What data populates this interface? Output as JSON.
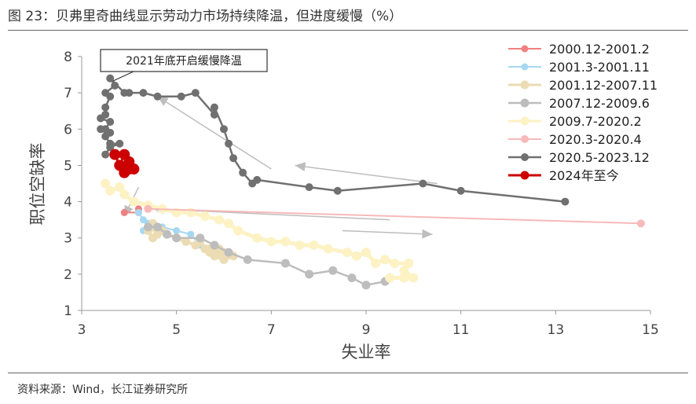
{
  "figure": {
    "title": "图 23：贝弗里奇曲线显示劳动力市场持续降温，但进度缓慢（%）",
    "source": "资料来源：Wind，长江证券研究所"
  },
  "colors": {
    "s1": "#f08080",
    "s2": "#a6d8f2",
    "s3": "#ecdcb4",
    "s4": "#bdbdbd",
    "s5": "#fdf2c4",
    "s6": "#f7b9b9",
    "s7": "#707070",
    "s8": "#cc0000",
    "arrow": "#bdbdbd",
    "axis": "#999999"
  },
  "chart_data": {
    "type": "scatter",
    "title": "",
    "xlabel": "失业率",
    "ylabel": "职位空缺率",
    "xlim": [
      3,
      15
    ],
    "ylim": [
      1,
      8
    ],
    "xticks": [
      3,
      5,
      7,
      9,
      11,
      13,
      15
    ],
    "yticks": [
      1,
      2,
      3,
      4,
      5,
      6,
      7,
      8
    ],
    "legend_position": "top-right",
    "annotation": "2021年底开启缓慢降温",
    "series": [
      {
        "name": "2000.12-2001.2",
        "color_key": "s1",
        "marker_r": 4.5,
        "line_width": 2,
        "points": [
          [
            3.9,
            3.7
          ],
          [
            4.2,
            3.7
          ],
          [
            4.2,
            3.8
          ]
        ]
      },
      {
        "name": "2001.3-2001.11",
        "color_key": "s2",
        "marker_r": 4.5,
        "line_width": 2,
        "points": [
          [
            4.2,
            3.7
          ],
          [
            4.3,
            3.5
          ],
          [
            4.4,
            3.4
          ],
          [
            4.3,
            3.2
          ],
          [
            4.7,
            3.3
          ],
          [
            5.0,
            3.2
          ],
          [
            5.3,
            3.1
          ],
          [
            5.5,
            2.8
          ],
          [
            5.7,
            2.7
          ]
        ]
      },
      {
        "name": "2001.12-2007.11",
        "color_key": "s3",
        "marker_r": 5.5,
        "line_width": 4,
        "points": [
          [
            5.7,
            2.7
          ],
          [
            5.9,
            2.6
          ],
          [
            5.8,
            2.5
          ],
          [
            6.0,
            2.4
          ],
          [
            6.2,
            2.5
          ],
          [
            6.0,
            2.6
          ],
          [
            5.9,
            2.7
          ],
          [
            5.7,
            2.6
          ],
          [
            5.6,
            2.7
          ],
          [
            5.5,
            2.9
          ],
          [
            5.4,
            2.8
          ],
          [
            5.2,
            2.9
          ],
          [
            5.0,
            3.0
          ],
          [
            4.8,
            3.1
          ],
          [
            4.6,
            3.2
          ],
          [
            4.5,
            3.3
          ],
          [
            4.5,
            3.4
          ],
          [
            4.6,
            3.3
          ],
          [
            4.7,
            3.2
          ],
          [
            4.6,
            3.1
          ],
          [
            4.5,
            3.0
          ],
          [
            4.4,
            3.2
          ]
        ]
      },
      {
        "name": "2007.12-2009.6",
        "color_key": "s4",
        "marker_r": 5.5,
        "line_width": 2.5,
        "points": [
          [
            4.4,
            3.3
          ],
          [
            4.6,
            3.3
          ],
          [
            4.8,
            3.1
          ],
          [
            5.0,
            3.0
          ],
          [
            5.5,
            3.0
          ],
          [
            5.8,
            2.8
          ],
          [
            6.1,
            2.6
          ],
          [
            6.5,
            2.4
          ],
          [
            7.3,
            2.3
          ],
          [
            7.8,
            2.0
          ],
          [
            8.3,
            2.1
          ],
          [
            8.7,
            1.9
          ],
          [
            9.0,
            1.7
          ],
          [
            9.4,
            1.8
          ]
        ]
      },
      {
        "name": "2009.7-2020.2",
        "color_key": "s5",
        "marker_r": 6,
        "line_width": 5,
        "points": [
          [
            9.5,
            1.9
          ],
          [
            9.8,
            1.9
          ],
          [
            10.0,
            1.9
          ],
          [
            9.8,
            2.1
          ],
          [
            9.9,
            2.3
          ],
          [
            9.6,
            2.3
          ],
          [
            9.4,
            2.4
          ],
          [
            9.2,
            2.3
          ],
          [
            9.0,
            2.6
          ],
          [
            8.8,
            2.5
          ],
          [
            8.6,
            2.6
          ],
          [
            8.2,
            2.7
          ],
          [
            7.9,
            2.8
          ],
          [
            7.6,
            2.8
          ],
          [
            7.3,
            2.9
          ],
          [
            7.0,
            2.9
          ],
          [
            6.7,
            3.0
          ],
          [
            6.3,
            3.2
          ],
          [
            6.1,
            3.4
          ],
          [
            5.9,
            3.5
          ],
          [
            5.6,
            3.6
          ],
          [
            5.3,
            3.7
          ],
          [
            5.0,
            3.7
          ],
          [
            4.7,
            3.8
          ],
          [
            4.4,
            3.9
          ],
          [
            4.1,
            4.0
          ],
          [
            3.9,
            4.2
          ],
          [
            3.8,
            4.4
          ],
          [
            3.6,
            4.3
          ],
          [
            3.5,
            4.5
          ]
        ]
      },
      {
        "name": "2020.3-2020.4",
        "color_key": "s6",
        "marker_r": 5,
        "line_width": 2,
        "points": [
          [
            4.4,
            3.8
          ],
          [
            14.8,
            3.4
          ]
        ]
      },
      {
        "name": "2020.5-2023.12",
        "color_key": "s7",
        "marker_r": 5,
        "line_width": 2.5,
        "points": [
          [
            13.2,
            4.0
          ],
          [
            11.0,
            4.3
          ],
          [
            10.2,
            4.5
          ],
          [
            8.4,
            4.3
          ],
          [
            7.8,
            4.4
          ],
          [
            6.7,
            4.6
          ],
          [
            6.6,
            4.5
          ],
          [
            6.4,
            4.8
          ],
          [
            6.2,
            5.2
          ],
          [
            6.1,
            5.6
          ],
          [
            6.0,
            6.0
          ],
          [
            5.8,
            6.6
          ],
          [
            5.8,
            6.4
          ],
          [
            5.4,
            7.0
          ],
          [
            5.1,
            6.9
          ],
          [
            4.6,
            6.9
          ],
          [
            4.3,
            7.0
          ],
          [
            4.0,
            7.0
          ],
          [
            3.9,
            7.0
          ],
          [
            3.6,
            7.4
          ],
          [
            3.7,
            7.2
          ],
          [
            3.5,
            7.0
          ],
          [
            3.6,
            6.9
          ],
          [
            3.5,
            6.6
          ],
          [
            3.5,
            6.4
          ],
          [
            3.4,
            6.3
          ],
          [
            3.6,
            6.2
          ],
          [
            3.5,
            6.0
          ],
          [
            3.4,
            6.0
          ],
          [
            3.6,
            5.9
          ],
          [
            3.5,
            5.8
          ],
          [
            3.6,
            5.6
          ],
          [
            3.8,
            5.6
          ],
          [
            3.6,
            5.5
          ],
          [
            3.5,
            5.3
          ]
        ]
      },
      {
        "name": "2024年至今",
        "color_key": "s8",
        "marker_r": 7,
        "line_width": 3,
        "points": [
          [
            3.7,
            5.3
          ],
          [
            3.8,
            5.0
          ],
          [
            3.9,
            5.3
          ],
          [
            4.0,
            5.1
          ],
          [
            3.9,
            4.8
          ],
          [
            4.1,
            4.9
          ],
          [
            4.0,
            4.9
          ]
        ]
      }
    ],
    "trend_arrows": [
      {
        "from": [
          4.2,
          4.4
        ],
        "to": [
          3.9,
          3.6
        ]
      },
      {
        "from": [
          9.5,
          3.5
        ],
        "to": [
          4.5,
          3.8
        ]
      },
      {
        "from": [
          7.0,
          4.9
        ],
        "to": [
          4.6,
          6.9
        ]
      },
      {
        "from": [
          10.5,
          4.5
        ],
        "to": [
          7.5,
          5.0
        ]
      },
      {
        "from": [
          8.5,
          3.2
        ],
        "to": [
          10.4,
          3.1
        ]
      }
    ]
  }
}
